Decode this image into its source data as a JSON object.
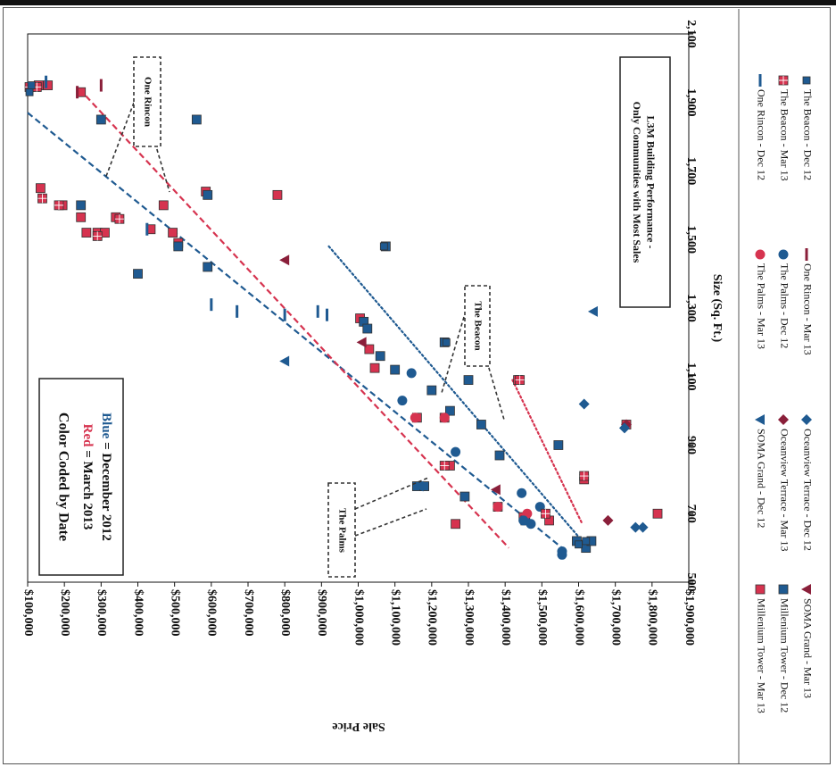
{
  "chart_data": {
    "type": "scatter",
    "title": "L3M Building Performance - Only Communities with Most Sales",
    "xlabel": "Size (Sq. Ft.)",
    "ylabel": "Sale Price",
    "xlim": [
      500,
      2100
    ],
    "ylim": [
      100000,
      1900000
    ],
    "x_ticks": [
      "500",
      "700",
      "900",
      "1,100",
      "1,300",
      "1,500",
      "1,700",
      "1,900",
      "2,100"
    ],
    "y_ticks": [
      "$100,000",
      "$200,000",
      "$300,000",
      "$400,000",
      "$500,000",
      "$600,000",
      "$700,000",
      "$800,000",
      "$900,000",
      "$1,000,000",
      "$1,100,000",
      "$1,200,000",
      "$1,300,000",
      "$1,400,000",
      "$1,500,000",
      "$1,600,000",
      "$1,700,000",
      "$1,800,000",
      "$1,900,000"
    ],
    "orientation": "rotated 90 degrees clockwise; x axis (Size) along right edge, y axis (Sale Price) along bottom",
    "legend_position": "right",
    "colors": {
      "red": "#d6334f",
      "blue": "#1f5a91",
      "dark_red": "#8a1f3a"
    },
    "annotation_box": {
      "title": "Color Coded by Date",
      "red_word": "Red",
      "red_rest": " = March 2013",
      "blue_word": "Blue",
      "blue_rest": " = December 2012"
    },
    "callouts": [
      "One Rincon",
      "The Beacon",
      "The Palms"
    ],
    "series": [
      {
        "name": "Millenium Tower - Mar 13",
        "marker": "square",
        "color": "#d6334f",
        "points": [
          [
            1950,
            1870000
          ],
          [
            1950,
            1845000
          ],
          [
            1650,
            1865000
          ],
          [
            1600,
            1805000
          ],
          [
            1600,
            1530000
          ],
          [
            1565,
            1755000
          ],
          [
            1565,
            1660000
          ],
          [
            1520,
            1740000
          ],
          [
            1520,
            1710000
          ],
          [
            1520,
            1690000
          ],
          [
            1530,
            1565000
          ],
          [
            1520,
            1505000
          ],
          [
            1490,
            1490000
          ],
          [
            1630,
            1220000
          ],
          [
            1640,
            1415000
          ],
          [
            1270,
            995000
          ],
          [
            1125,
            955000
          ],
          [
            1180,
            970000
          ],
          [
            1090,
            565000
          ],
          [
            980,
            840000
          ],
          [
            980,
            765000
          ],
          [
            840,
            750000
          ],
          [
            720,
            620000
          ],
          [
            690,
            550000
          ],
          [
            680,
            480000
          ],
          [
            670,
            735000
          ],
          [
            800,
            385000
          ],
          [
            700,
            185000
          ],
          [
            960,
            270000
          ],
          [
            1930,
            1755000
          ]
        ]
      },
      {
        "name": "Millenium Tower - Dec 12",
        "marker": "square",
        "color": "#1f5a91",
        "points": [
          [
            1850,
            1700000
          ],
          [
            1850,
            1440000
          ],
          [
            1630,
            1410000
          ],
          [
            1600,
            1755000
          ],
          [
            1480,
            1490000
          ],
          [
            1480,
            925000
          ],
          [
            1420,
            1410000
          ],
          [
            1400,
            1600000
          ],
          [
            1260,
            985000
          ],
          [
            1240,
            975000
          ],
          [
            1200,
            765000
          ],
          [
            1160,
            940000
          ],
          [
            1120,
            900000
          ],
          [
            1090,
            700000
          ],
          [
            1060,
            800000
          ],
          [
            1000,
            750000
          ],
          [
            960,
            665000
          ],
          [
            870,
            615000
          ],
          [
            900,
            455000
          ],
          [
            780,
            840000
          ],
          [
            780,
            820000
          ],
          [
            750,
            710000
          ],
          [
            680,
            545000
          ],
          [
            620,
            405000
          ],
          [
            600,
            380000
          ],
          [
            620,
            365000
          ]
        ]
      },
      {
        "name": "SOMA Grand - Mar 13",
        "marker": "triangle",
        "color": "#8a1f3a",
        "points": [
          [
            1440,
            1200000
          ],
          [
            1200,
            990000
          ],
          [
            770,
            625000
          ]
        ]
      },
      {
        "name": "SOMA Grand - Dec 12",
        "marker": "triangle",
        "color": "#1f5a91",
        "points": [
          [
            1290,
            360000
          ],
          [
            1145,
            1200000
          ],
          [
            780,
            835000
          ]
        ]
      },
      {
        "name": "Oceanview Terrace - Mar 13",
        "marker": "diamond",
        "color": "#8a1f3a",
        "points": [
          [
            960,
            270000
          ],
          [
            680,
            320000
          ]
        ]
      },
      {
        "name": "Oceanview Terrace - Dec 12",
        "marker": "diamond",
        "color": "#1f5a91",
        "points": [
          [
            1020,
            385000
          ],
          [
            950,
            275000
          ],
          [
            660,
            245000
          ],
          [
            660,
            225000
          ]
        ]
      },
      {
        "name": "The Palms - Mar 13",
        "marker": "circle",
        "color": "#d6334f",
        "points": [
          [
            980,
            845000
          ],
          [
            980,
            765000
          ],
          [
            720,
            620000
          ],
          [
            700,
            540000
          ]
        ]
      },
      {
        "name": "The Palms - Dec 12",
        "marker": "circle",
        "color": "#1f5a91",
        "points": [
          [
            1110,
            855000
          ],
          [
            1030,
            880000
          ],
          [
            880,
            735000
          ],
          [
            760,
            555000
          ],
          [
            720,
            505000
          ],
          [
            680,
            550000
          ],
          [
            670,
            530000
          ],
          [
            590,
            445000
          ],
          [
            580,
            445000
          ]
        ]
      },
      {
        "name": "One Rincon - Mar 13",
        "marker": "dash",
        "color": "#8a1f3a",
        "points": [
          [
            1930,
            1765000
          ],
          [
            1950,
            1700000
          ]
        ]
      },
      {
        "name": "One Rincon - Dec 12",
        "marker": "dash",
        "color": "#1f5a91",
        "points": [
          [
            1960,
            1850000
          ],
          [
            1530,
            1575000
          ],
          [
            1310,
            1400000
          ],
          [
            1290,
            1330000
          ],
          [
            1280,
            1200000
          ],
          [
            1290,
            1110000
          ],
          [
            1280,
            1085000
          ]
        ]
      },
      {
        "name": "The Beacon - Mar 13",
        "marker": "square-hatched",
        "color": "#d6334f",
        "points": [
          [
            1945,
            1895000
          ],
          [
            1945,
            1875000
          ],
          [
            1620,
            1860000
          ],
          [
            1600,
            1815000
          ],
          [
            1510,
            1710000
          ],
          [
            1560,
            1650000
          ],
          [
            1090,
            560000
          ],
          [
            840,
            765000
          ],
          [
            810,
            385000
          ],
          [
            700,
            490000
          ]
        ]
      },
      {
        "name": "The Beacon - Dec 12",
        "marker": "square-small",
        "color": "#1f5a91",
        "points": [
          [
            1930,
            1895000
          ],
          [
            1950,
            1890000
          ],
          [
            1480,
            930000
          ],
          [
            1200,
            760000
          ],
          [
            610,
            400000
          ],
          [
            620,
            380000
          ]
        ]
      }
    ],
    "trendlines": [
      {
        "name": "blue-dashed-main",
        "color": "#1f5a91",
        "style": "dashed",
        "from": [
          1870,
          1900000
        ],
        "to": [
          600,
          445000
        ]
      },
      {
        "name": "red-dashed-main",
        "color": "#d6334f",
        "style": "dashed",
        "from": [
          1940,
          1760000
        ],
        "to": [
          600,
          590000
        ]
      },
      {
        "name": "blue-dotted-beacon",
        "color": "#1f5a91",
        "style": "dotted",
        "from": [
          1480,
          1080000
        ],
        "to": [
          620,
          390000
        ]
      },
      {
        "name": "red-dotted-beacon",
        "color": "#d6334f",
        "style": "dotted",
        "from": [
          1090,
          580000
        ],
        "to": [
          670,
          390000
        ]
      }
    ]
  }
}
